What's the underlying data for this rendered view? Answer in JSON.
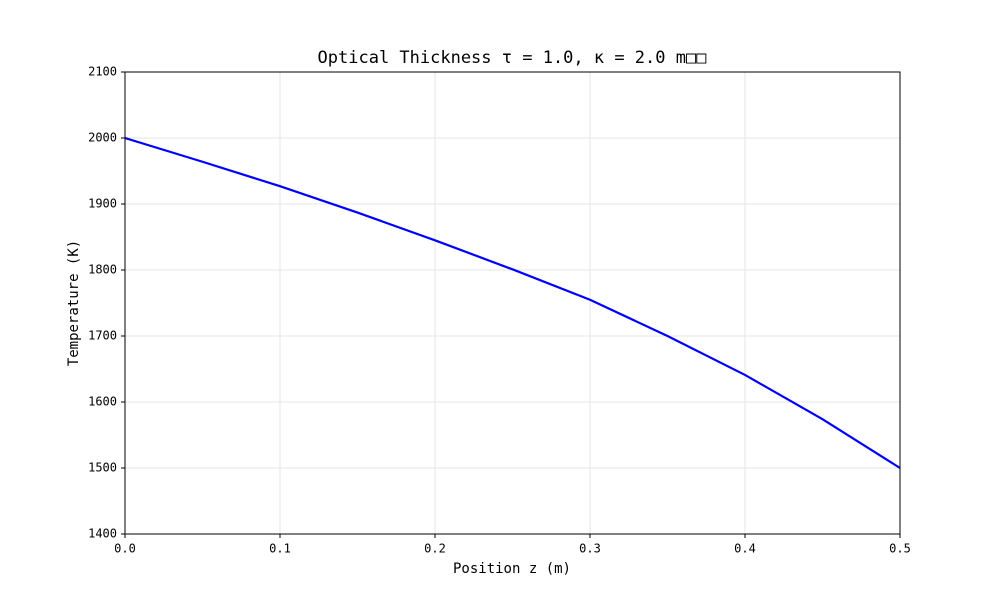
{
  "chart_data": {
    "type": "line",
    "title": "Optical Thickness τ = 1.0, κ = 2.0 m□□",
    "x_label": "Position z (m)",
    "y_label": "Temperature (K)",
    "x": [
      0,
      0.05,
      0.1,
      0.15,
      0.2,
      0.25,
      0.3,
      0.35,
      0.4,
      0.45,
      0.5
    ],
    "series": [
      {
        "name": "Temperature",
        "color": "#0000ff",
        "values": [
          2000,
          1964,
          1927,
          1887,
          1845,
          1801,
          1755,
          1700,
          1641,
          1574,
          1500
        ]
      }
    ],
    "xlim": [
      0,
      0.5
    ],
    "xticks": [
      {
        "value": 0,
        "label": "0.0"
      },
      0.1,
      0.2,
      0.3,
      0.4,
      0.5
    ],
    "ylim": [
      1400,
      2100
    ],
    "yticks": [
      1400,
      1500,
      1600,
      1700,
      1800,
      1900,
      2000,
      2100
    ],
    "grid": true
  }
}
